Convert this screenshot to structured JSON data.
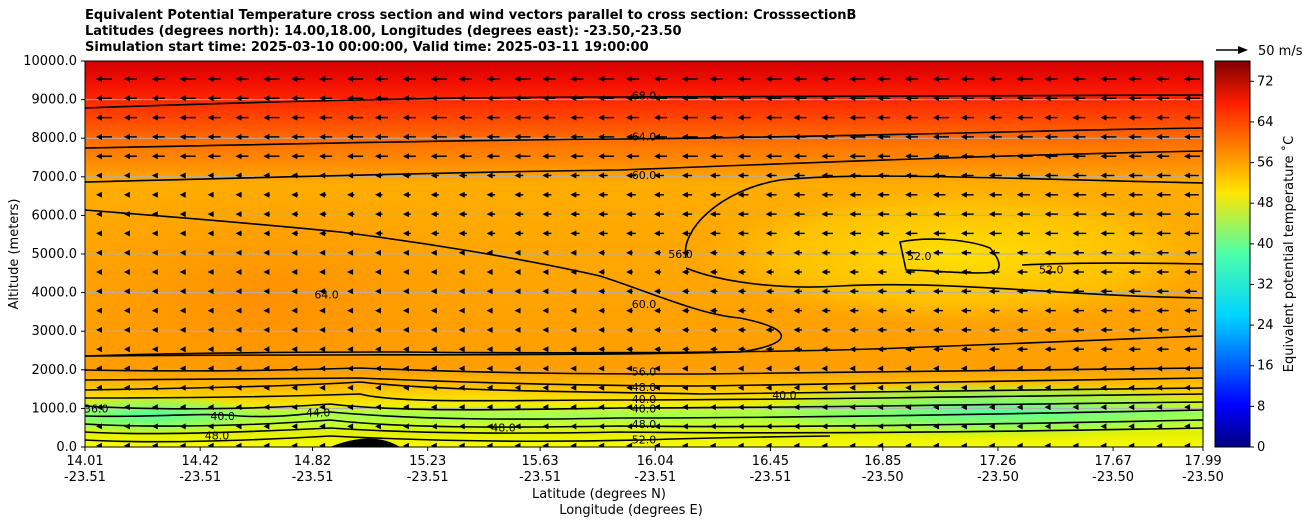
{
  "chart_data": {
    "type": "heatmap",
    "title_lines": [
      "Equivalent Potential Temperature cross section and wind vectors parallel to cross section: CrosssectionB",
      "Latitudes (degrees north): 14.00,18.00, Longitudes (degrees east): -23.50,-23.50",
      "Simulation start time: 2025-03-10 00:00:00, Valid time: 2025-03-11 19:00:00"
    ],
    "ylabel": "Altitude (meters)",
    "xlabel_lat": "Latitude (degrees N)",
    "xlabel_lon": "Longitude (degrees E)",
    "ylim": [
      0,
      10000
    ],
    "yticks": [
      "0.0",
      "1000.0",
      "2000.0",
      "3000.0",
      "4000.0",
      "5000.0",
      "6000.0",
      "7000.0",
      "8000.0",
      "9000.0",
      "10000.0"
    ],
    "xlim": [
      14.01,
      17.99
    ],
    "xticks_lat": [
      "14.01",
      "14.42",
      "14.82",
      "15.23",
      "15.63",
      "16.04",
      "16.45",
      "16.85",
      "17.26",
      "17.67",
      "17.99"
    ],
    "xticks_lon": [
      "-23.51",
      "-23.51",
      "-23.51",
      "-23.51",
      "-23.51",
      "-23.51",
      "-23.51",
      "-23.50",
      "-23.50",
      "-23.50",
      "-23.50"
    ],
    "colorbar": {
      "label": "Equivalent potential temperature ˚C",
      "min": 0,
      "max": 76,
      "ticks": [
        "0",
        "8",
        "16",
        "24",
        "32",
        "40",
        "48",
        "56",
        "64",
        "72"
      ]
    },
    "quiver_key": "50 m/s",
    "contours": [
      {
        "level": "68.0",
        "lat": 16.0,
        "alt": 9100
      },
      {
        "level": "64.0",
        "lat": 16.0,
        "alt": 8050
      },
      {
        "level": "60.0",
        "lat": 16.0,
        "alt": 7050
      },
      {
        "level": "64.0",
        "lat": 14.87,
        "alt": 3950
      },
      {
        "level": "60.0",
        "lat": 16.0,
        "alt": 3700
      },
      {
        "level": "56.0",
        "lat": 16.13,
        "alt": 5000
      },
      {
        "level": "52.0",
        "lat": 16.98,
        "alt": 4950
      },
      {
        "level": "52.0",
        "lat": 17.45,
        "alt": 4600
      },
      {
        "level": "56.0",
        "lat": 16.0,
        "alt": 1950
      },
      {
        "level": "48.0",
        "lat": 16.0,
        "alt": 1550
      },
      {
        "level": "40.0",
        "lat": 16.0,
        "alt": 1250
      },
      {
        "level": "40.0",
        "lat": 16.0,
        "alt": 1000
      },
      {
        "level": "40.0",
        "lat": 16.5,
        "alt": 1350
      },
      {
        "level": "48.0",
        "lat": 16.0,
        "alt": 600
      },
      {
        "level": "48.0",
        "lat": 15.5,
        "alt": 500
      },
      {
        "level": "44.0",
        "lat": 14.84,
        "alt": 900
      },
      {
        "level": "40.0",
        "lat": 14.5,
        "alt": 800
      },
      {
        "level": "48.0",
        "lat": 14.48,
        "alt": 300
      },
      {
        "level": "52.0",
        "lat": 16.0,
        "alt": 200
      },
      {
        "level": "36.0",
        "lat": 14.05,
        "alt": 1000
      }
    ]
  }
}
